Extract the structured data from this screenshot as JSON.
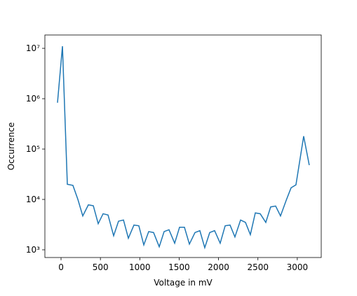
{
  "chart_data": {
    "type": "line",
    "x_label": "Voltage in mV",
    "y_label": "Occurrence",
    "y_scale": "log",
    "x": [
      -45,
      18,
      80,
      151,
      214,
      276,
      347,
      410,
      472,
      534,
      597,
      668,
      730,
      793,
      855,
      926,
      988,
      1051,
      1113,
      1175,
      1247,
      1309,
      1371,
      1443,
      1505,
      1567,
      1630,
      1701,
      1763,
      1825,
      1888,
      1950,
      2021,
      2084,
      2146,
      2208,
      2280,
      2342,
      2404,
      2467,
      2529,
      2600,
      2662,
      2725,
      2787,
      2858,
      2921,
      2983,
      3081,
      3152
    ],
    "series": [
      {
        "name": "Occurrence",
        "color": "#1f77b4",
        "values": [
          830000,
          11000000,
          20000,
          19000,
          10000,
          4700,
          7800,
          7500,
          3300,
          5200,
          4900,
          1900,
          3700,
          3900,
          1700,
          3100,
          3000,
          1250,
          2300,
          2200,
          1150,
          2300,
          2500,
          1350,
          2800,
          2800,
          1300,
          2200,
          2400,
          1100,
          2200,
          2400,
          1350,
          3000,
          3100,
          1800,
          3900,
          3500,
          2000,
          5400,
          5200,
          3500,
          7100,
          7400,
          4700,
          9500,
          17000,
          19500,
          180000,
          48000
        ]
      }
    ],
    "xlim": [
      -205,
      3304
    ],
    "xticks": [
      0,
      500,
      1000,
      1500,
      2000,
      2500,
      3000
    ],
    "ylim": [
      703,
      18400000
    ],
    "yticks": [
      {
        "value": 1000,
        "label": "10³"
      },
      {
        "value": 10000,
        "label": "10⁴"
      },
      {
        "value": 100000,
        "label": "10⁵"
      },
      {
        "value": 1000000,
        "label": "10⁶"
      },
      {
        "value": 10000000,
        "label": "10⁷"
      }
    ]
  }
}
